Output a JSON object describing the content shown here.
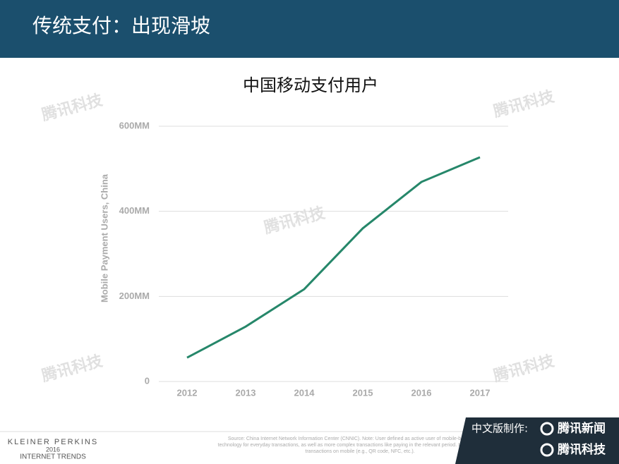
{
  "header": {
    "title": "传统支付：出现滑坡"
  },
  "chart_data": {
    "type": "line",
    "title": "中国移动支付用户",
    "y_label": "Mobile Payment Users, China",
    "categories": [
      "2012",
      "2013",
      "2014",
      "2015",
      "2016",
      "2017"
    ],
    "series": [
      {
        "name": "Mobile Payment Users, China",
        "color": "#26876a",
        "values": [
          56,
          129,
          217,
          360,
          469,
          527
        ]
      }
    ],
    "ylim": [
      0,
      600
    ],
    "yticks": [
      0,
      {
        "value": 200,
        "label": "200MM"
      },
      {
        "value": 400,
        "label": "400MM"
      },
      {
        "value": 600,
        "label": "600MM"
      }
    ],
    "grid": true
  },
  "footer": {
    "brand_line1": "KLEINER PERKINS",
    "brand_line2": "2016",
    "brand_line3": "INTERNET TRENDS",
    "source": "Source: China Internet Network Information Center (CNNIC). Note: User defined as active user of mobile-based payment technology for everyday transactions, as well as more complex transactions like paying in the relevant period. Includes all forms of transactions on mobile (e.g., QR code, NFC, etc.).",
    "credit_label": "中文版制作:",
    "credit_news": "腾讯新闻",
    "credit_tech": "腾讯科技"
  },
  "watermark": "腾讯科技"
}
